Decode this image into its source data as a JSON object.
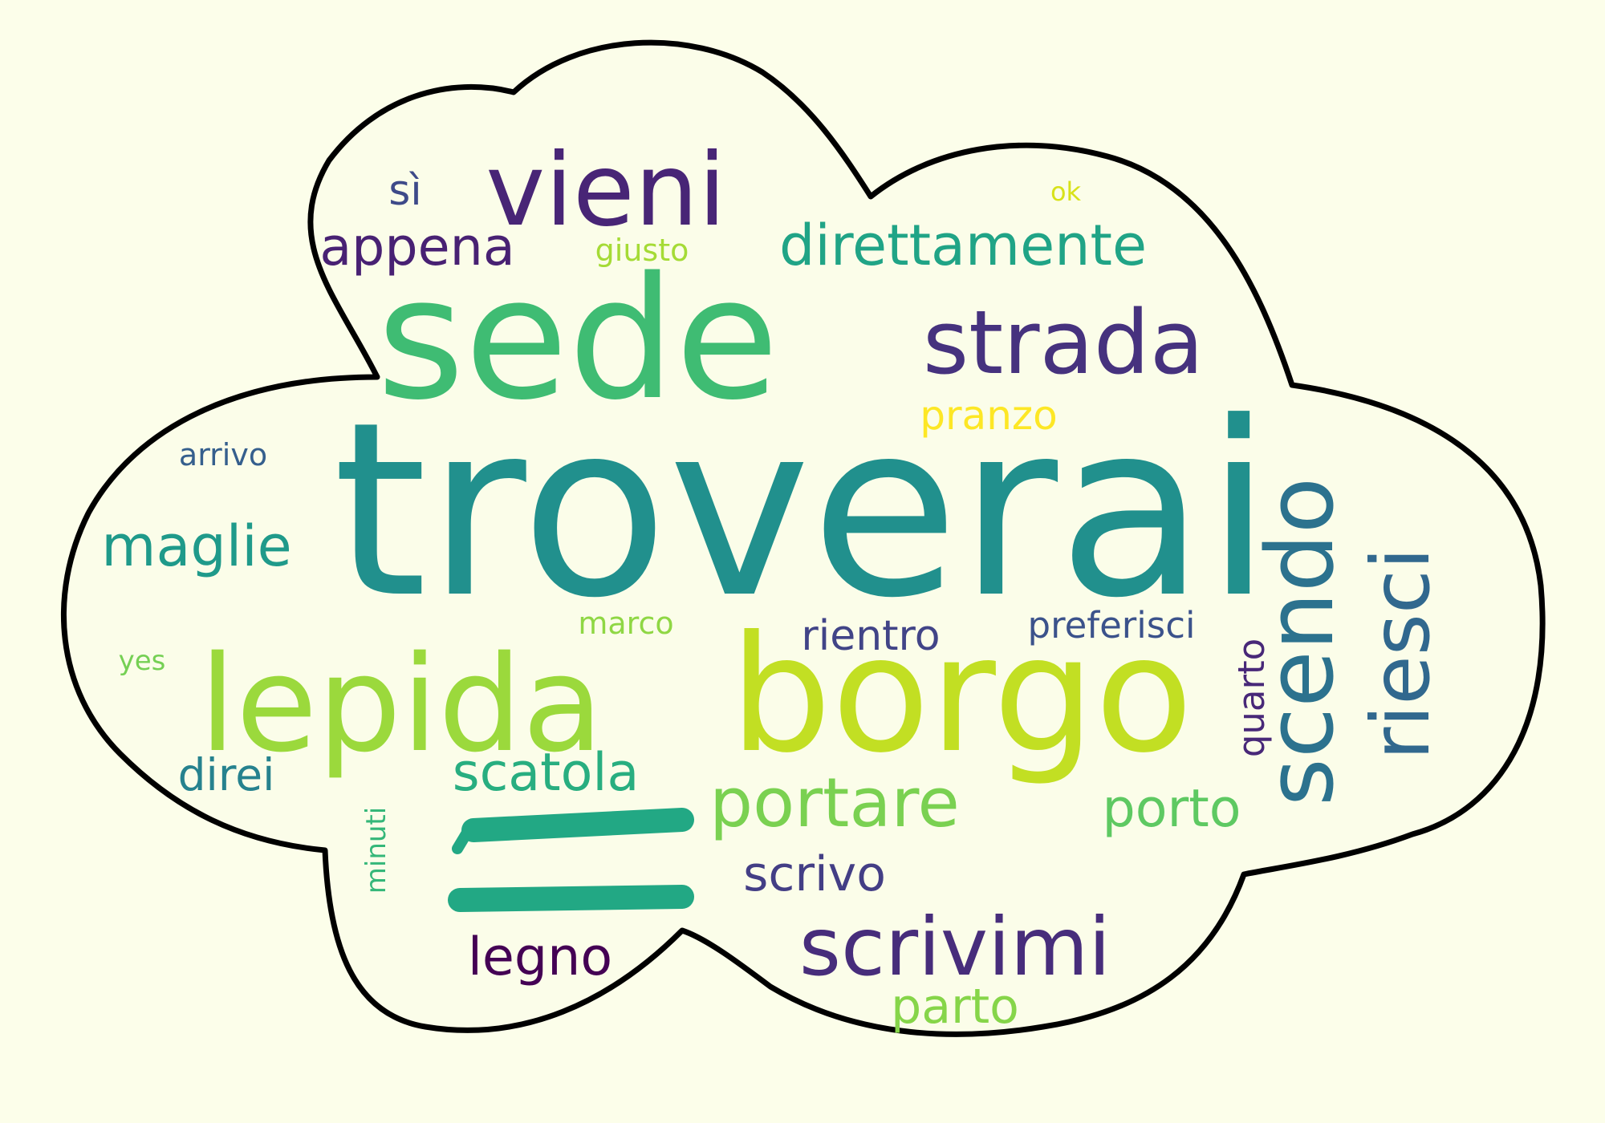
{
  "colors": {
    "background": "#fcfeea",
    "cloud_fill": "#fbfde9",
    "cloud_outline": "#000000"
  },
  "words": [
    {
      "text": "troverai",
      "color": "#21908d"
    },
    {
      "text": "sede",
      "color": "#3fbc73"
    },
    {
      "text": "borgo",
      "color": "#c2df23"
    },
    {
      "text": "lepida",
      "color": "#9bd93c"
    },
    {
      "text": "strada",
      "color": "#46327e"
    },
    {
      "text": "vieni",
      "color": "#482576"
    },
    {
      "text": "scrivimi",
      "color": "#472d7b"
    },
    {
      "text": "scendo",
      "color": "#2c728e"
    },
    {
      "text": "riesci",
      "color": "#31688e"
    },
    {
      "text": "direttamente",
      "color": "#20a486"
    },
    {
      "text": "portare",
      "color": "#7ad151"
    },
    {
      "text": "appena",
      "color": "#482173"
    },
    {
      "text": "maglie",
      "color": "#1f9a8a"
    },
    {
      "text": "scatola",
      "color": "#28ae80"
    },
    {
      "text": "porto",
      "color": "#5ec962"
    },
    {
      "text": "scrivo",
      "color": "#433e85"
    },
    {
      "text": "legno",
      "color": "#440154"
    },
    {
      "text": "parto",
      "color": "#86d549"
    },
    {
      "text": "rientro",
      "color": "#414487"
    },
    {
      "text": "preferisci",
      "color": "#3b528b"
    },
    {
      "text": "quarto",
      "color": "#482878"
    },
    {
      "text": "pranzo",
      "color": "#fde725"
    },
    {
      "text": "direi",
      "color": "#26828e"
    },
    {
      "text": "sì",
      "color": "#3e4a89"
    },
    {
      "text": "giusto",
      "color": "#a5db36"
    },
    {
      "text": "marco",
      "color": "#8fd744"
    },
    {
      "text": "arrivo",
      "color": "#355f8d"
    },
    {
      "text": "minuti",
      "color": "#35b779"
    },
    {
      "text": "yes",
      "color": "#75d054"
    },
    {
      "text": "ok",
      "color": "#d8e219"
    }
  ],
  "big_mark": {
    "text": "ì",
    "color": "#22a884"
  }
}
